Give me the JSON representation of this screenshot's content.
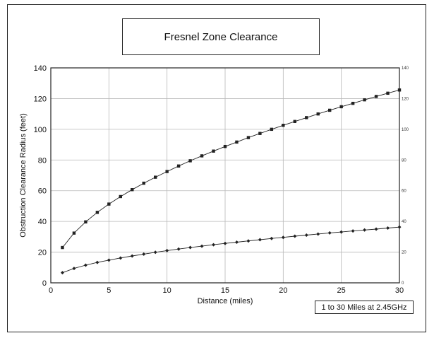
{
  "chart_data": {
    "type": "line",
    "title": "Fresnel Zone Clearance",
    "xlabel": "Distance (miles)",
    "ylabel": "Obstruction Clearance Radius (feet)",
    "annotation": "1 to 30 Miles at 2.45GHz",
    "xlim": [
      0,
      30
    ],
    "ylim": [
      0,
      140
    ],
    "x_ticks": [
      0,
      5,
      10,
      15,
      20,
      25,
      30
    ],
    "y_ticks": [
      0,
      20,
      40,
      60,
      80,
      100,
      120,
      140
    ],
    "y2_ticks": [
      0,
      20,
      40,
      60,
      80,
      100,
      120,
      140
    ],
    "grid": true,
    "x": [
      1,
      2,
      3,
      4,
      5,
      6,
      7,
      8,
      9,
      10,
      11,
      12,
      13,
      14,
      15,
      16,
      17,
      18,
      19,
      20,
      21,
      22,
      23,
      24,
      25,
      26,
      27,
      28,
      29,
      30
    ],
    "series": [
      {
        "marker": "square",
        "values": [
          23,
          32.4,
          39.7,
          45.9,
          51.3,
          56.2,
          60.7,
          64.9,
          68.8,
          72.5,
          76.1,
          79.5,
          82.7,
          85.8,
          88.8,
          91.7,
          94.6,
          97.3,
          100,
          102.6,
          105.1,
          107.6,
          110,
          112.4,
          114.7,
          116.9,
          119.2,
          121.4,
          123.5,
          125.6
        ]
      },
      {
        "marker": "diamond",
        "values": [
          6.6,
          9.4,
          11.5,
          13.3,
          14.8,
          16.2,
          17.5,
          18.7,
          19.9,
          21,
          22,
          23,
          23.9,
          24.8,
          25.7,
          26.5,
          27.3,
          28.1,
          28.9,
          29.6,
          30.4,
          31.1,
          31.8,
          32.5,
          33.1,
          33.8,
          34.4,
          35,
          35.7,
          36.3
        ]
      }
    ]
  }
}
